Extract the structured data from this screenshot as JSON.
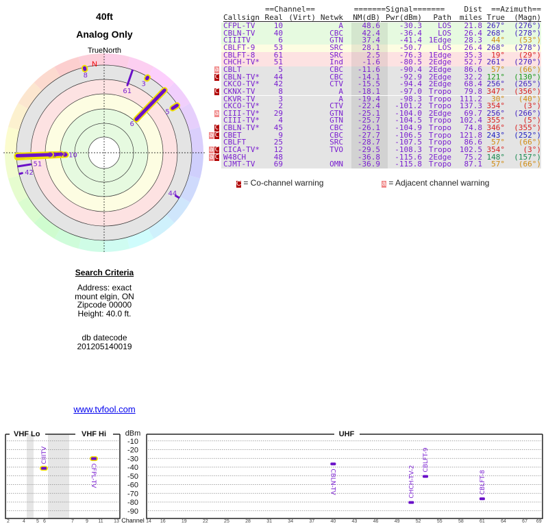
{
  "header": {
    "height": "40ft",
    "mode": "Analog Only",
    "north_label": "TrueNorth",
    "n_marker": "N"
  },
  "search": {
    "title": "Search Criteria",
    "lines": [
      "Address: exact",
      "mount elgin, ON",
      "Zipcode 00000",
      "Height: 40.0 ft."
    ],
    "db_label": "db datecode",
    "db_value": "201205140019",
    "link": "www.tvfool.com"
  },
  "table": {
    "group_headers": {
      "channel": "==Channel==",
      "signal": "=======Signal=======",
      "dist": "Dist",
      "azimuth": "==Azimuth=="
    },
    "columns": [
      "Callsign",
      "Real",
      "(Virt)",
      "Netwk",
      "NM(dB)",
      "Pwr(dBm)",
      "Path",
      "miles",
      "True",
      "(Magn)"
    ],
    "rows": [
      {
        "call": "CFPL-TV",
        "real": "10",
        "netwk": "A",
        "nm": "48.6",
        "pwr": "-30.3",
        "path": "LOS",
        "dist": "21.8",
        "true": "267°",
        "magn": "(276°)",
        "az": 267,
        "bg": "#e6fae0",
        "azc": "#4020c0",
        "warn": "",
        "hl": true
      },
      {
        "call": "CBLN-TV",
        "real": "40",
        "netwk": "CBC",
        "nm": "42.4",
        "pwr": "-36.4",
        "path": "LOS",
        "dist": "26.4",
        "true": "268°",
        "magn": "(278°)",
        "az": 268,
        "bg": "#e6fae0",
        "azc": "#4020c0",
        "warn": "",
        "hl": true
      },
      {
        "call": "CIIITV",
        "real": "6",
        "netwk": "GTN",
        "nm": "37.4",
        "pwr": "-41.4",
        "path": "1Edge",
        "dist": "28.3",
        "true": "44°",
        "magn": "(53°)",
        "az": 44,
        "bg": "#e6fae0",
        "azc": "#d08a10",
        "warn": "",
        "hl": true
      },
      {
        "call": "CBLFT-9",
        "real": "53",
        "netwk": "SRC",
        "nm": "28.1",
        "pwr": "-50.7",
        "path": "LOS",
        "dist": "26.4",
        "true": "268°",
        "magn": "(278°)",
        "az": 268,
        "bg": "#fdfde2",
        "azc": "#4020c0",
        "warn": "",
        "hl": true
      },
      {
        "call": "CBLFT-8",
        "real": "61",
        "netwk": "SRC",
        "nm": "2.5",
        "pwr": "-76.3",
        "path": "1Edge",
        "dist": "35.3",
        "true": "19°",
        "magn": "(29°)",
        "az": 19,
        "bg": "#fde2e2",
        "azc": "#d82020",
        "warn": "",
        "hl": false
      },
      {
        "call": "CHCH-TV*",
        "real": "51",
        "netwk": "Ind",
        "nm": "-1.6",
        "pwr": "-80.5",
        "path": "2Edge",
        "dist": "52.7",
        "true": "261°",
        "magn": "(270°)",
        "az": 261,
        "bg": "#fde2e2",
        "azc": "#4020c0",
        "warn": "",
        "hl": false
      },
      {
        "call": "CBLT",
        "real": "5",
        "netwk": "CBC",
        "nm": "-11.6",
        "pwr": "-90.4",
        "path": "2Edge",
        "dist": "86.6",
        "true": "57°",
        "magn": "(66°)",
        "az": 57,
        "bg": "#e4e4e4",
        "azc": "#d08a10",
        "warn": "a",
        "hl": true
      },
      {
        "call": "CBLN-TV*",
        "real": "44",
        "netwk": "CBC",
        "nm": "-14.1",
        "pwr": "-92.9",
        "path": "2Edge",
        "dist": "32.2",
        "true": "121°",
        "magn": "(130°)",
        "az": 121,
        "bg": "#e4e4e4",
        "azc": "#1a9a1a",
        "warn": "C",
        "hl": false
      },
      {
        "call": "CKCO-TV*",
        "real": "42",
        "netwk": "CTV",
        "nm": "-15.5",
        "pwr": "-94.4",
        "path": "2Edge",
        "dist": "68.4",
        "true": "256°",
        "magn": "(265°)",
        "az": 256,
        "bg": "#e4e4e4",
        "azc": "#4020c0",
        "warn": "",
        "hl": false
      },
      {
        "call": "CKNX-TV",
        "real": "8",
        "netwk": "A",
        "nm": "-18.1",
        "pwr": "-97.0",
        "path": "Tropo",
        "dist": "79.8",
        "true": "347°",
        "magn": "(356°)",
        "az": 347,
        "bg": "#e4e4e4",
        "azc": "#d82020",
        "warn": "C",
        "hl": true
      },
      {
        "call": "CKVR-TV",
        "real": "3",
        "netwk": "A",
        "nm": "-19.4",
        "pwr": "-98.3",
        "path": "Tropo",
        "dist": "111.2",
        "true": "30°",
        "magn": "(40°)",
        "az": 30,
        "bg": "#e4e4e4",
        "azc": "#d08a10",
        "warn": "",
        "hl": true
      },
      {
        "call": "CKCO-TV*",
        "real": "2",
        "netwk": "CTV",
        "nm": "-22.4",
        "pwr": "-101.2",
        "path": "Tropo",
        "dist": "137.3",
        "true": "354°",
        "magn": "(3°)",
        "az": 354,
        "bg": "#e4e4e4",
        "azc": "#d82020",
        "warn": "",
        "hl": false
      },
      {
        "call": "CIII-TV*",
        "real": "29",
        "netwk": "GTN",
        "nm": "-25.1",
        "pwr": "-104.0",
        "path": "2Edge",
        "dist": "69.7",
        "true": "256°",
        "magn": "(266°)",
        "az": 256,
        "bg": "#e4e4e4",
        "azc": "#4020c0",
        "warn": "a",
        "hl": false
      },
      {
        "call": "CIII-TV*",
        "real": "4",
        "netwk": "GTN",
        "nm": "-25.7",
        "pwr": "-104.5",
        "path": "Tropo",
        "dist": "102.4",
        "true": "355°",
        "magn": "(5°)",
        "az": 355,
        "bg": "#e4e4e4",
        "azc": "#d82020",
        "warn": "",
        "hl": false
      },
      {
        "call": "CBLN-TV*",
        "real": "45",
        "netwk": "CBC",
        "nm": "-26.1",
        "pwr": "-104.9",
        "path": "Tropo",
        "dist": "74.8",
        "true": "346°",
        "magn": "(355°)",
        "az": 346,
        "bg": "#e4e4e4",
        "azc": "#d82020",
        "warn": "C",
        "hl": false
      },
      {
        "call": "CBET",
        "real": "9",
        "netwk": "CBC",
        "nm": "-27.7",
        "pwr": "-106.5",
        "path": "Tropo",
        "dist": "121.8",
        "true": "243°",
        "magn": "(252°)",
        "az": 243,
        "bg": "#e4e4e4",
        "azc": "#2020c0",
        "warn": "aC",
        "hl": false
      },
      {
        "call": "CBLFT",
        "real": "25",
        "netwk": "SRC",
        "nm": "-28.7",
        "pwr": "-107.5",
        "path": "Tropo",
        "dist": "86.6",
        "true": "57°",
        "magn": "(66°)",
        "az": 57,
        "bg": "#e4e4e4",
        "azc": "#d08a10",
        "warn": "",
        "hl": false
      },
      {
        "call": "CICA-TV*",
        "real": "12",
        "netwk": "TVO",
        "nm": "-29.5",
        "pwr": "-108.3",
        "path": "Tropo",
        "dist": "102.5",
        "true": "354°",
        "magn": "(3°)",
        "az": 354,
        "bg": "#e4e4e4",
        "azc": "#d82020",
        "warn": "aC",
        "hl": false
      },
      {
        "call": "W48CH",
        "real": "48",
        "netwk": "",
        "nm": "-36.8",
        "pwr": "-115.6",
        "path": "2Edge",
        "dist": "75.2",
        "true": "148°",
        "magn": "(157°)",
        "az": 148,
        "bg": "#e4e4e4",
        "azc": "#1a8a50",
        "warn": "aC",
        "hl": false
      },
      {
        "call": "CJMT-TV",
        "real": "69",
        "netwk": "OMN",
        "nm": "-36.9",
        "pwr": "-115.8",
        "path": "Tropo",
        "dist": "87.1",
        "true": "57°",
        "magn": "(66°)",
        "az": 57,
        "bg": "#e4e4e4",
        "azc": "#d08a10",
        "warn": "",
        "hl": false
      }
    ],
    "legend": {
      "co_badge": "C",
      "co_text": "= Co-channel warning",
      "adj_badge": "a",
      "adj_text": "= Adjacent channel warning"
    }
  },
  "radar": {
    "labeled": [
      {
        "label": "10",
        "az": 267,
        "nm": 48.6,
        "hl": true
      },
      {
        "label": "40",
        "az": 268,
        "nm": 42.4,
        "hl": true
      },
      {
        "label": "6",
        "az": 44,
        "nm": 37.4,
        "hl": true
      },
      {
        "label": "53",
        "az": 268,
        "nm": 28.1,
        "hl": true
      },
      {
        "label": "61",
        "az": 19,
        "nm": 2.5,
        "hl": false
      },
      {
        "label": "51",
        "az": 261,
        "nm": -1.6,
        "hl": false
      },
      {
        "label": "5",
        "az": 57,
        "nm": -11.6,
        "hl": true
      },
      {
        "label": "44",
        "az": 121,
        "nm": -14.1,
        "hl": false
      },
      {
        "label": "42",
        "az": 256,
        "nm": -15.5,
        "hl": false
      },
      {
        "label": "8",
        "az": 347,
        "nm": -18.1,
        "hl": true
      },
      {
        "label": "3",
        "az": 30,
        "nm": -19.4,
        "hl": true
      }
    ]
  },
  "spectrum": {
    "vhf_lo": "VHF Lo",
    "vhf_hi": "VHF Hi",
    "uhf": "UHF",
    "unit": "dBm",
    "channel_label": "Channel",
    "y_ticks": [
      "-10",
      "-20",
      "-30",
      "-40",
      "-50",
      "-60",
      "-70",
      "-80",
      "-90"
    ],
    "vhf_ticks": [
      "2",
      "4",
      "5",
      "6",
      "7",
      "9",
      "11",
      "13"
    ],
    "uhf_ticks": [
      "14",
      "16",
      "19",
      "22",
      "25",
      "28",
      "31",
      "34",
      "37",
      "40",
      "43",
      "46",
      "49",
      "52",
      "55",
      "58",
      "61",
      "64",
      "67",
      "69"
    ],
    "stations": [
      {
        "call": "CIIITV",
        "ch": 6,
        "dbm": -41.4,
        "hl": true
      },
      {
        "call": "CFPL-TV",
        "ch": 10,
        "dbm": -30.3,
        "hl": true
      },
      {
        "call": "CBLN-TV",
        "ch": 40,
        "dbm": -36.4,
        "hl": false
      },
      {
        "call": "CHCH-TV-2",
        "ch": 51,
        "dbm": -80.5,
        "hl": false
      },
      {
        "call": "CBLFT-9",
        "ch": 53,
        "dbm": -50.7,
        "hl": false
      },
      {
        "call": "CBLFT-8",
        "ch": 61,
        "dbm": -76.3,
        "hl": false
      }
    ]
  },
  "colors": {
    "station": "#7a1fd0",
    "highlight": "#f0e000",
    "co": "#b00000",
    "adj": "#f08888"
  }
}
